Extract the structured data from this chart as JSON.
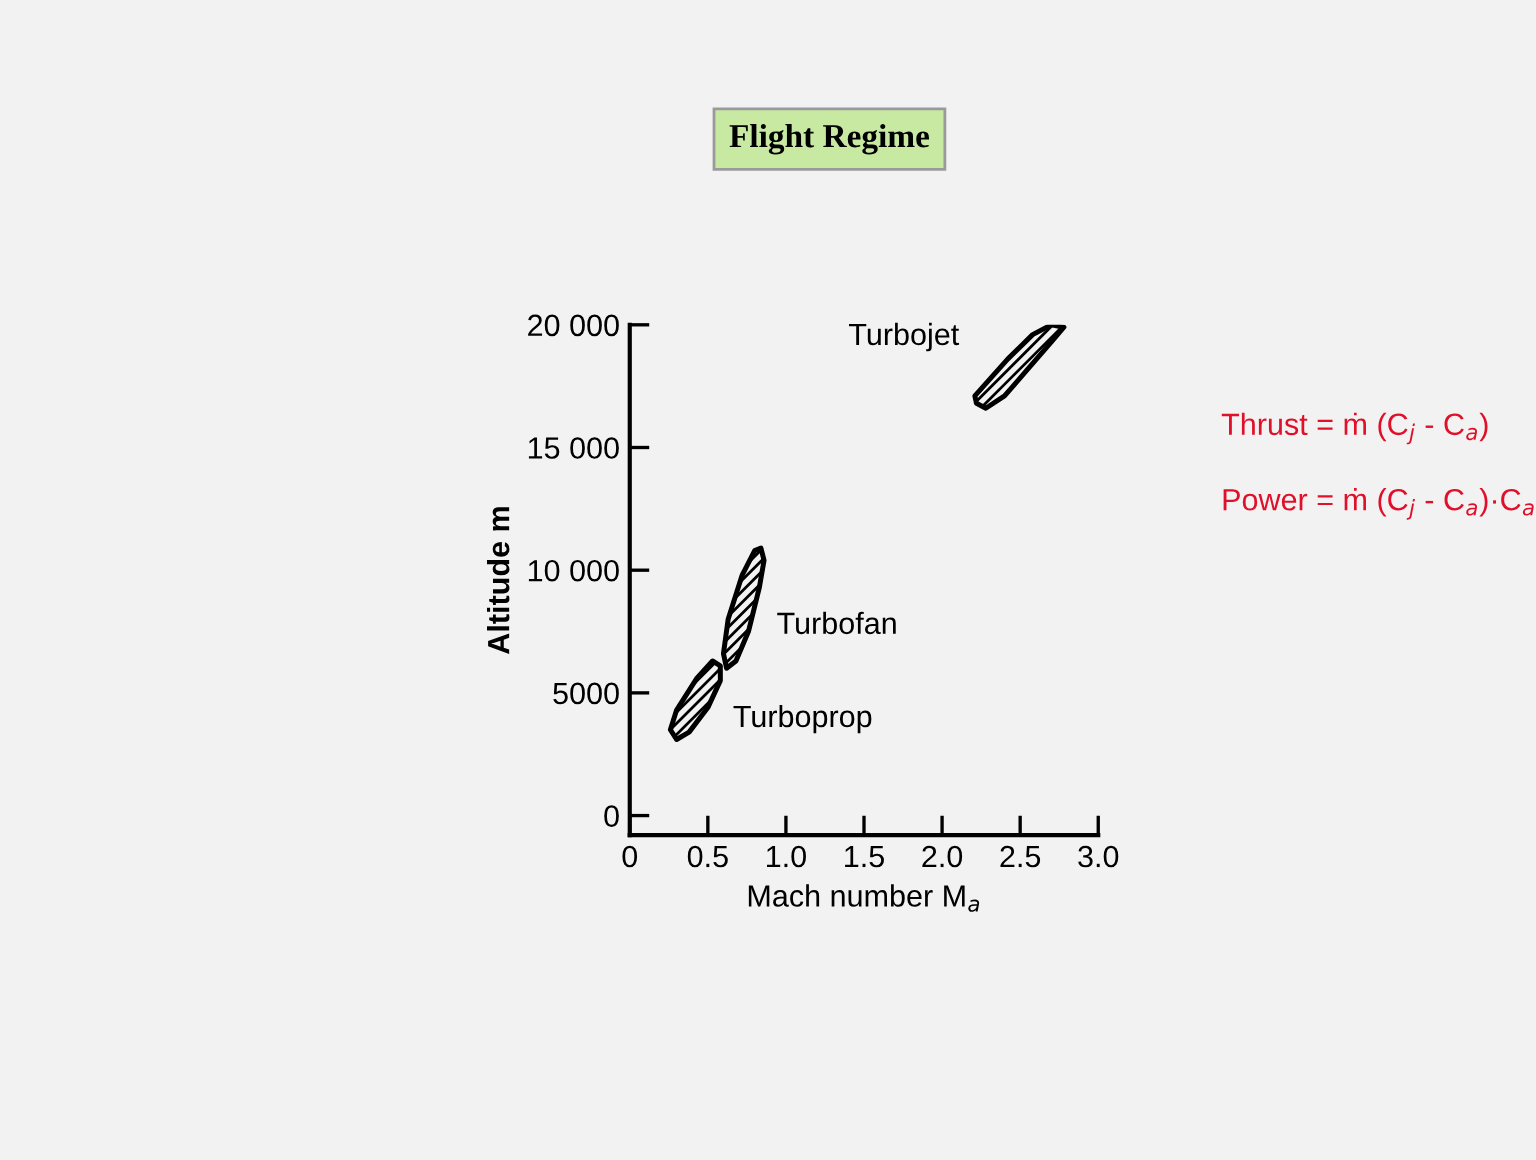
{
  "chart_data": {
    "type": "area",
    "title": "Flight Regime",
    "xlabel": "Mach number M$_{a}$",
    "ylabel": "Altitude m",
    "xlim": [
      0,
      3.0
    ],
    "ylim": [
      -800,
      20000
    ],
    "xticks": [
      0,
      0.5,
      {
        "value": 1.0,
        "label": "1.0"
      },
      1.5,
      {
        "value": 2.0,
        "label": "2.0"
      },
      2.5,
      {
        "value": 3.0,
        "label": "3.0"
      }
    ],
    "yticks": [
      0,
      5000,
      {
        "value": 10000,
        "label": "10 000"
      },
      {
        "value": 15000,
        "label": "15 000"
      },
      {
        "value": 20000,
        "label": "20 000"
      }
    ],
    "grid": false,
    "legend": false,
    "series": [
      {
        "name": "Turbojet",
        "color": "#000000",
        "x": [
          2.22,
          2.28,
          2.4,
          2.55,
          2.7,
          2.78,
          2.7,
          2.58,
          2.42,
          2.28,
          2.21,
          2.22
        ],
        "values": [
          16800,
          16600,
          17100,
          18200,
          19300,
          19900,
          20000,
          19600,
          18600,
          17600,
          17100,
          16800
        ]
      },
      {
        "name": "Turbofan",
        "color": "#000000",
        "x": [
          0.62,
          0.68,
          0.76,
          0.83,
          0.86,
          0.84,
          0.8,
          0.72,
          0.63,
          0.6,
          0.62
        ],
        "values": [
          6000,
          6300,
          7500,
          9300,
          10400,
          10900,
          10800,
          9800,
          8000,
          6600,
          6000
        ]
      },
      {
        "name": "Turboprop",
        "color": "#000000",
        "x": [
          0.3,
          0.38,
          0.5,
          0.58,
          0.58,
          0.53,
          0.43,
          0.3,
          0.26,
          0.3
        ],
        "values": [
          3100,
          3400,
          4400,
          5500,
          6100,
          6300,
          5600,
          4300,
          3500,
          3100
        ]
      }
    ],
    "annotations": [
      "Thrust = ṁ (C$_{j}$ - C$_{a}$)",
      "Power = ṁ (C$_{j}$ - C$_{a}$)·C$_{a}$"
    ]
  }
}
